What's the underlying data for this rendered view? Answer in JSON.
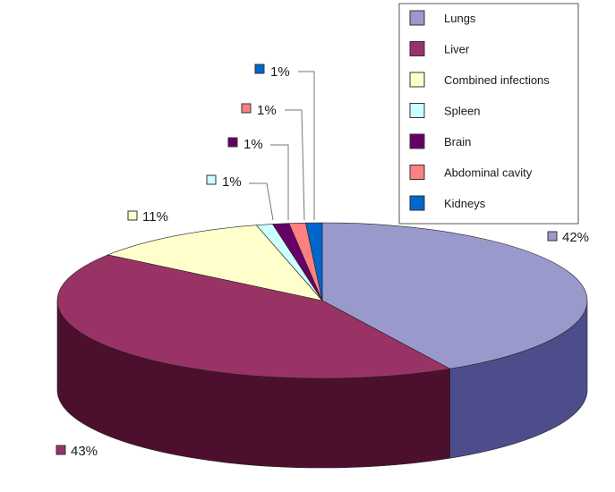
{
  "chart_data": {
    "type": "pie",
    "title": "",
    "legend_position": "top-right",
    "categories": [
      "Lungs",
      "Liver",
      "Combined infections",
      "Spleen",
      "Brain",
      "Abdominal cavity",
      "Kidneys"
    ],
    "values": [
      42,
      43,
      11,
      1,
      1,
      1,
      1
    ],
    "labels": [
      "42%",
      "43%",
      "11%",
      "1%",
      "1%",
      "1%",
      "1%"
    ],
    "colors": [
      "#9999cc",
      "#993366",
      "#ffffcc",
      "#ccffff",
      "#660066",
      "#ff8080",
      "#0066cc"
    ],
    "side_colors": [
      "#4d4d8c",
      "#4d0f2e",
      "#b3b38c",
      "#8cb3b3",
      "#330033",
      "#b35959",
      "#003d80"
    ]
  }
}
